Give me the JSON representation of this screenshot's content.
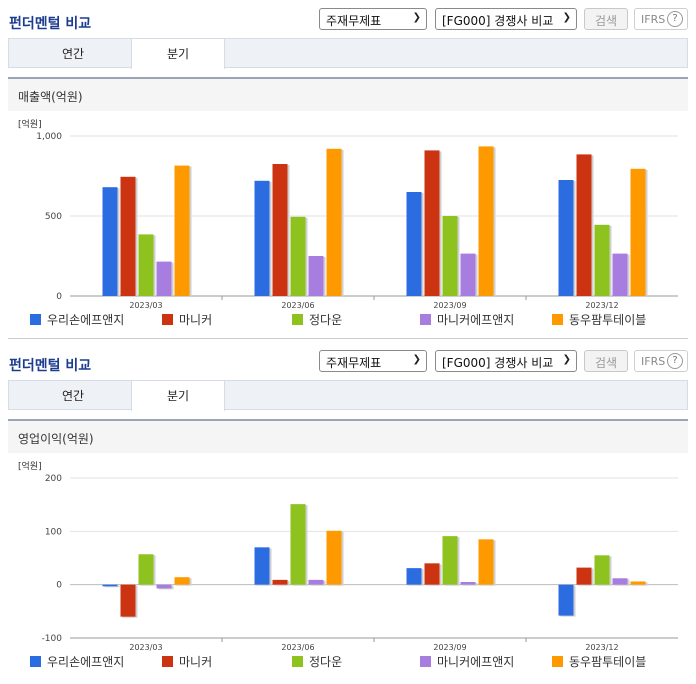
{
  "colors": [
    "#2b6ce0",
    "#cc3311",
    "#8dc21f",
    "#a77ee0",
    "#ff9900"
  ],
  "panels": [
    {
      "title": "펀더멘털 비교",
      "select1": "주재무제표",
      "select2": "[FG000] 경쟁사 비교",
      "search_btn": "검색",
      "ifrs": "IFRS",
      "help": "?",
      "tab1": "연간",
      "tab2": "분기",
      "subtitle": "매출액(억원)",
      "chart_data": {
        "type": "bar",
        "unit_label": "[억원]",
        "categories": [
          "2023/03",
          "2023/06",
          "2023/09",
          "2023/12"
        ],
        "ylim": [
          0,
          1000
        ],
        "yticks": [
          0,
          500,
          1000
        ],
        "ytick_labels": [
          "0",
          "500",
          "1,000"
        ],
        "series": [
          {
            "name": "우리손에프앤지",
            "values": [
              680,
              720,
              650,
              725
            ]
          },
          {
            "name": "마니커",
            "values": [
              745,
              825,
              910,
              885
            ]
          },
          {
            "name": "정다운",
            "values": [
              385,
              495,
              500,
              445
            ]
          },
          {
            "name": "마니커에프앤지",
            "values": [
              215,
              250,
              265,
              265
            ]
          },
          {
            "name": "동우팜투테이블",
            "values": [
              815,
              920,
              935,
              795
            ]
          }
        ],
        "legend": "bottom"
      }
    },
    {
      "title": "펀더멘털 비교",
      "select1": "주재무제표",
      "select2": "[FG000] 경쟁사 비교",
      "search_btn": "검색",
      "ifrs": "IFRS",
      "help": "?",
      "tab1": "연간",
      "tab2": "분기",
      "subtitle": "영업이익(억원)",
      "chart_data": {
        "type": "bar",
        "unit_label": "[억원]",
        "categories": [
          "2023/03",
          "2023/06",
          "2023/09",
          "2023/12"
        ],
        "ylim": [
          -100,
          200
        ],
        "yticks": [
          -100,
          0,
          100,
          200
        ],
        "ytick_labels": [
          "-100",
          "0",
          "100",
          "200"
        ],
        "series": [
          {
            "name": "우리손에프앤지",
            "values": [
              -3,
              70,
              31,
              -58
            ]
          },
          {
            "name": "마니커",
            "values": [
              -60,
              9,
              40,
              32
            ]
          },
          {
            "name": "정다운",
            "values": [
              57,
              151,
              91,
              55
            ]
          },
          {
            "name": "마니커에프앤지",
            "values": [
              -7,
              9,
              5,
              12
            ]
          },
          {
            "name": "동우팜투테이블",
            "values": [
              14,
              101,
              85,
              6
            ]
          }
        ],
        "legend": "bottom"
      }
    }
  ]
}
